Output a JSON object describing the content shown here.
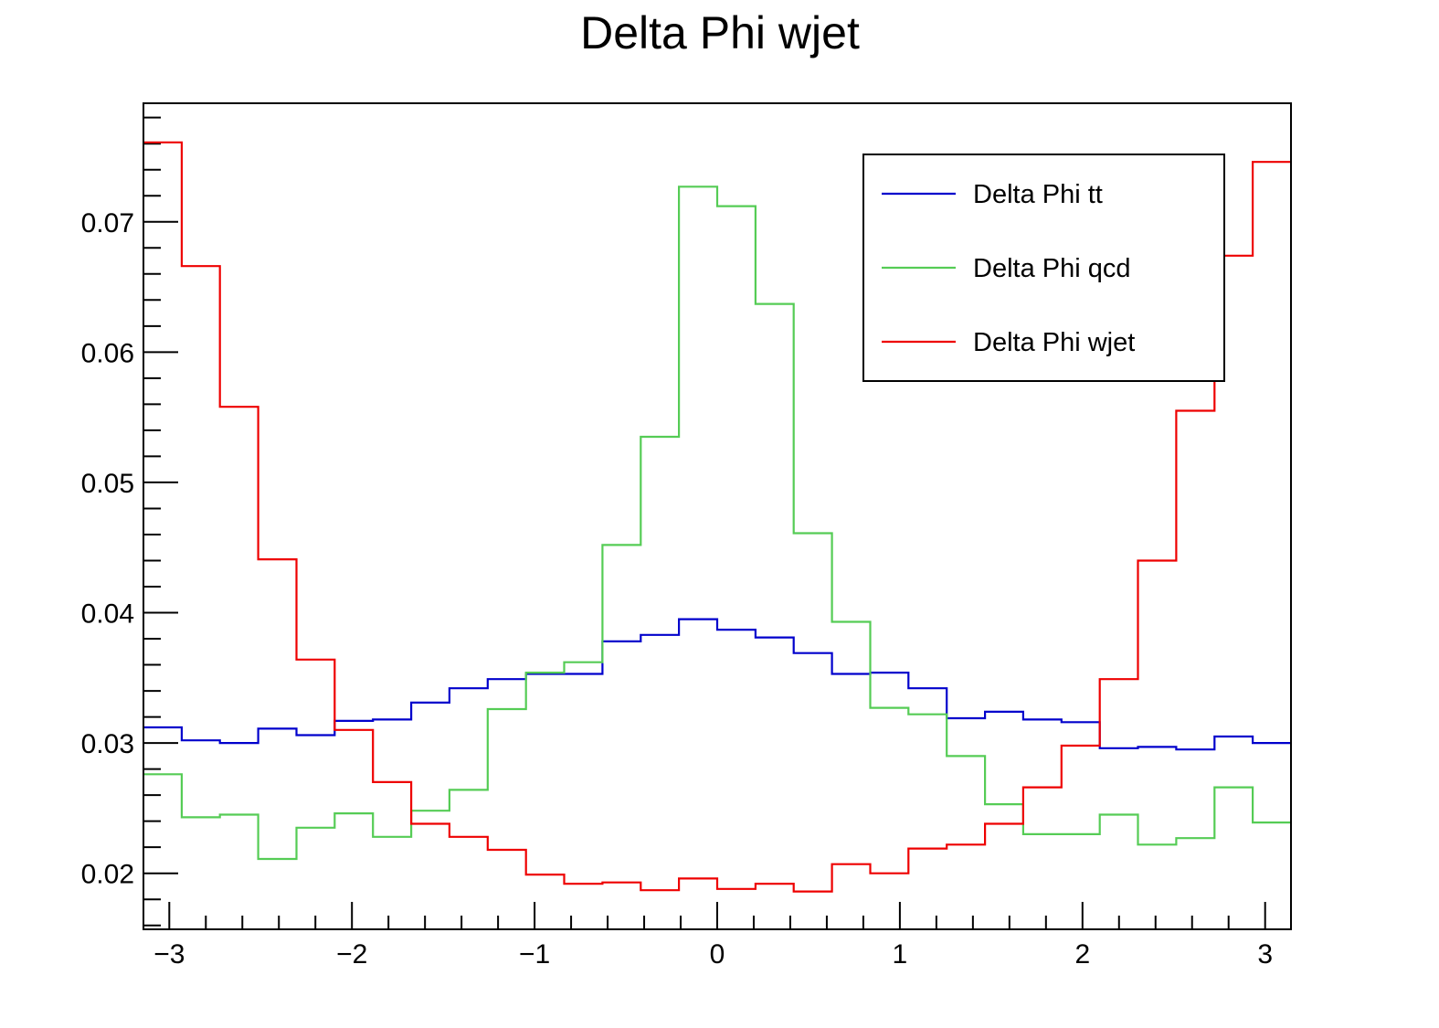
{
  "chart_data": {
    "type": "line",
    "style": "step histogram",
    "title": "Delta Phi wjet",
    "xlabel": "",
    "ylabel": "",
    "xlim": [
      -3.1416,
      3.1416
    ],
    "ylim": [
      0.0157,
      0.0791
    ],
    "bins": 30,
    "x_ticks": [
      {
        "value": -3,
        "label": "−3"
      },
      {
        "value": -2,
        "label": "−2"
      },
      {
        "value": -1,
        "label": "−1"
      },
      {
        "value": 0,
        "label": "0"
      },
      {
        "value": 1,
        "label": "1"
      },
      {
        "value": 2,
        "label": "2"
      },
      {
        "value": 3,
        "label": "3"
      }
    ],
    "y_ticks": [
      {
        "value": 0.02,
        "label": "0.02"
      },
      {
        "value": 0.03,
        "label": "0.03"
      },
      {
        "value": 0.04,
        "label": "0.04"
      },
      {
        "value": 0.05,
        "label": "0.05"
      },
      {
        "value": 0.06,
        "label": "0.06"
      },
      {
        "value": 0.07,
        "label": "0.07"
      }
    ],
    "legend_position": "top-right",
    "series": [
      {
        "name": "Delta Phi tt",
        "color": "#0000cc",
        "values": [
          0.0312,
          0.0302,
          0.03,
          0.0311,
          0.0306,
          0.0317,
          0.0318,
          0.0331,
          0.0342,
          0.0349,
          0.0353,
          0.0353,
          0.0378,
          0.0383,
          0.0395,
          0.0387,
          0.0381,
          0.0369,
          0.0353,
          0.0354,
          0.0342,
          0.0319,
          0.0324,
          0.0318,
          0.0316,
          0.0296,
          0.0297,
          0.0295,
          0.0305,
          0.03
        ]
      },
      {
        "name": "Delta Phi qcd",
        "color": "#55cc55",
        "values": [
          0.0276,
          0.0243,
          0.0245,
          0.0211,
          0.0235,
          0.0246,
          0.0228,
          0.0248,
          0.0264,
          0.0326,
          0.0354,
          0.0362,
          0.0452,
          0.0535,
          0.0727,
          0.0712,
          0.0637,
          0.0461,
          0.0393,
          0.0327,
          0.0322,
          0.029,
          0.0253,
          0.023,
          0.023,
          0.0245,
          0.0222,
          0.0227,
          0.0266,
          0.0239
        ]
      },
      {
        "name": "Delta Phi wjet",
        "color": "#ee0000",
        "values": [
          0.0761,
          0.0666,
          0.0558,
          0.0441,
          0.0364,
          0.031,
          0.027,
          0.0238,
          0.0228,
          0.0218,
          0.0199,
          0.0192,
          0.0193,
          0.0187,
          0.0196,
          0.0188,
          0.0192,
          0.0186,
          0.0207,
          0.02,
          0.0219,
          0.0222,
          0.0238,
          0.0266,
          0.0298,
          0.0349,
          0.044,
          0.0555,
          0.0674,
          0.0746
        ]
      }
    ]
  }
}
